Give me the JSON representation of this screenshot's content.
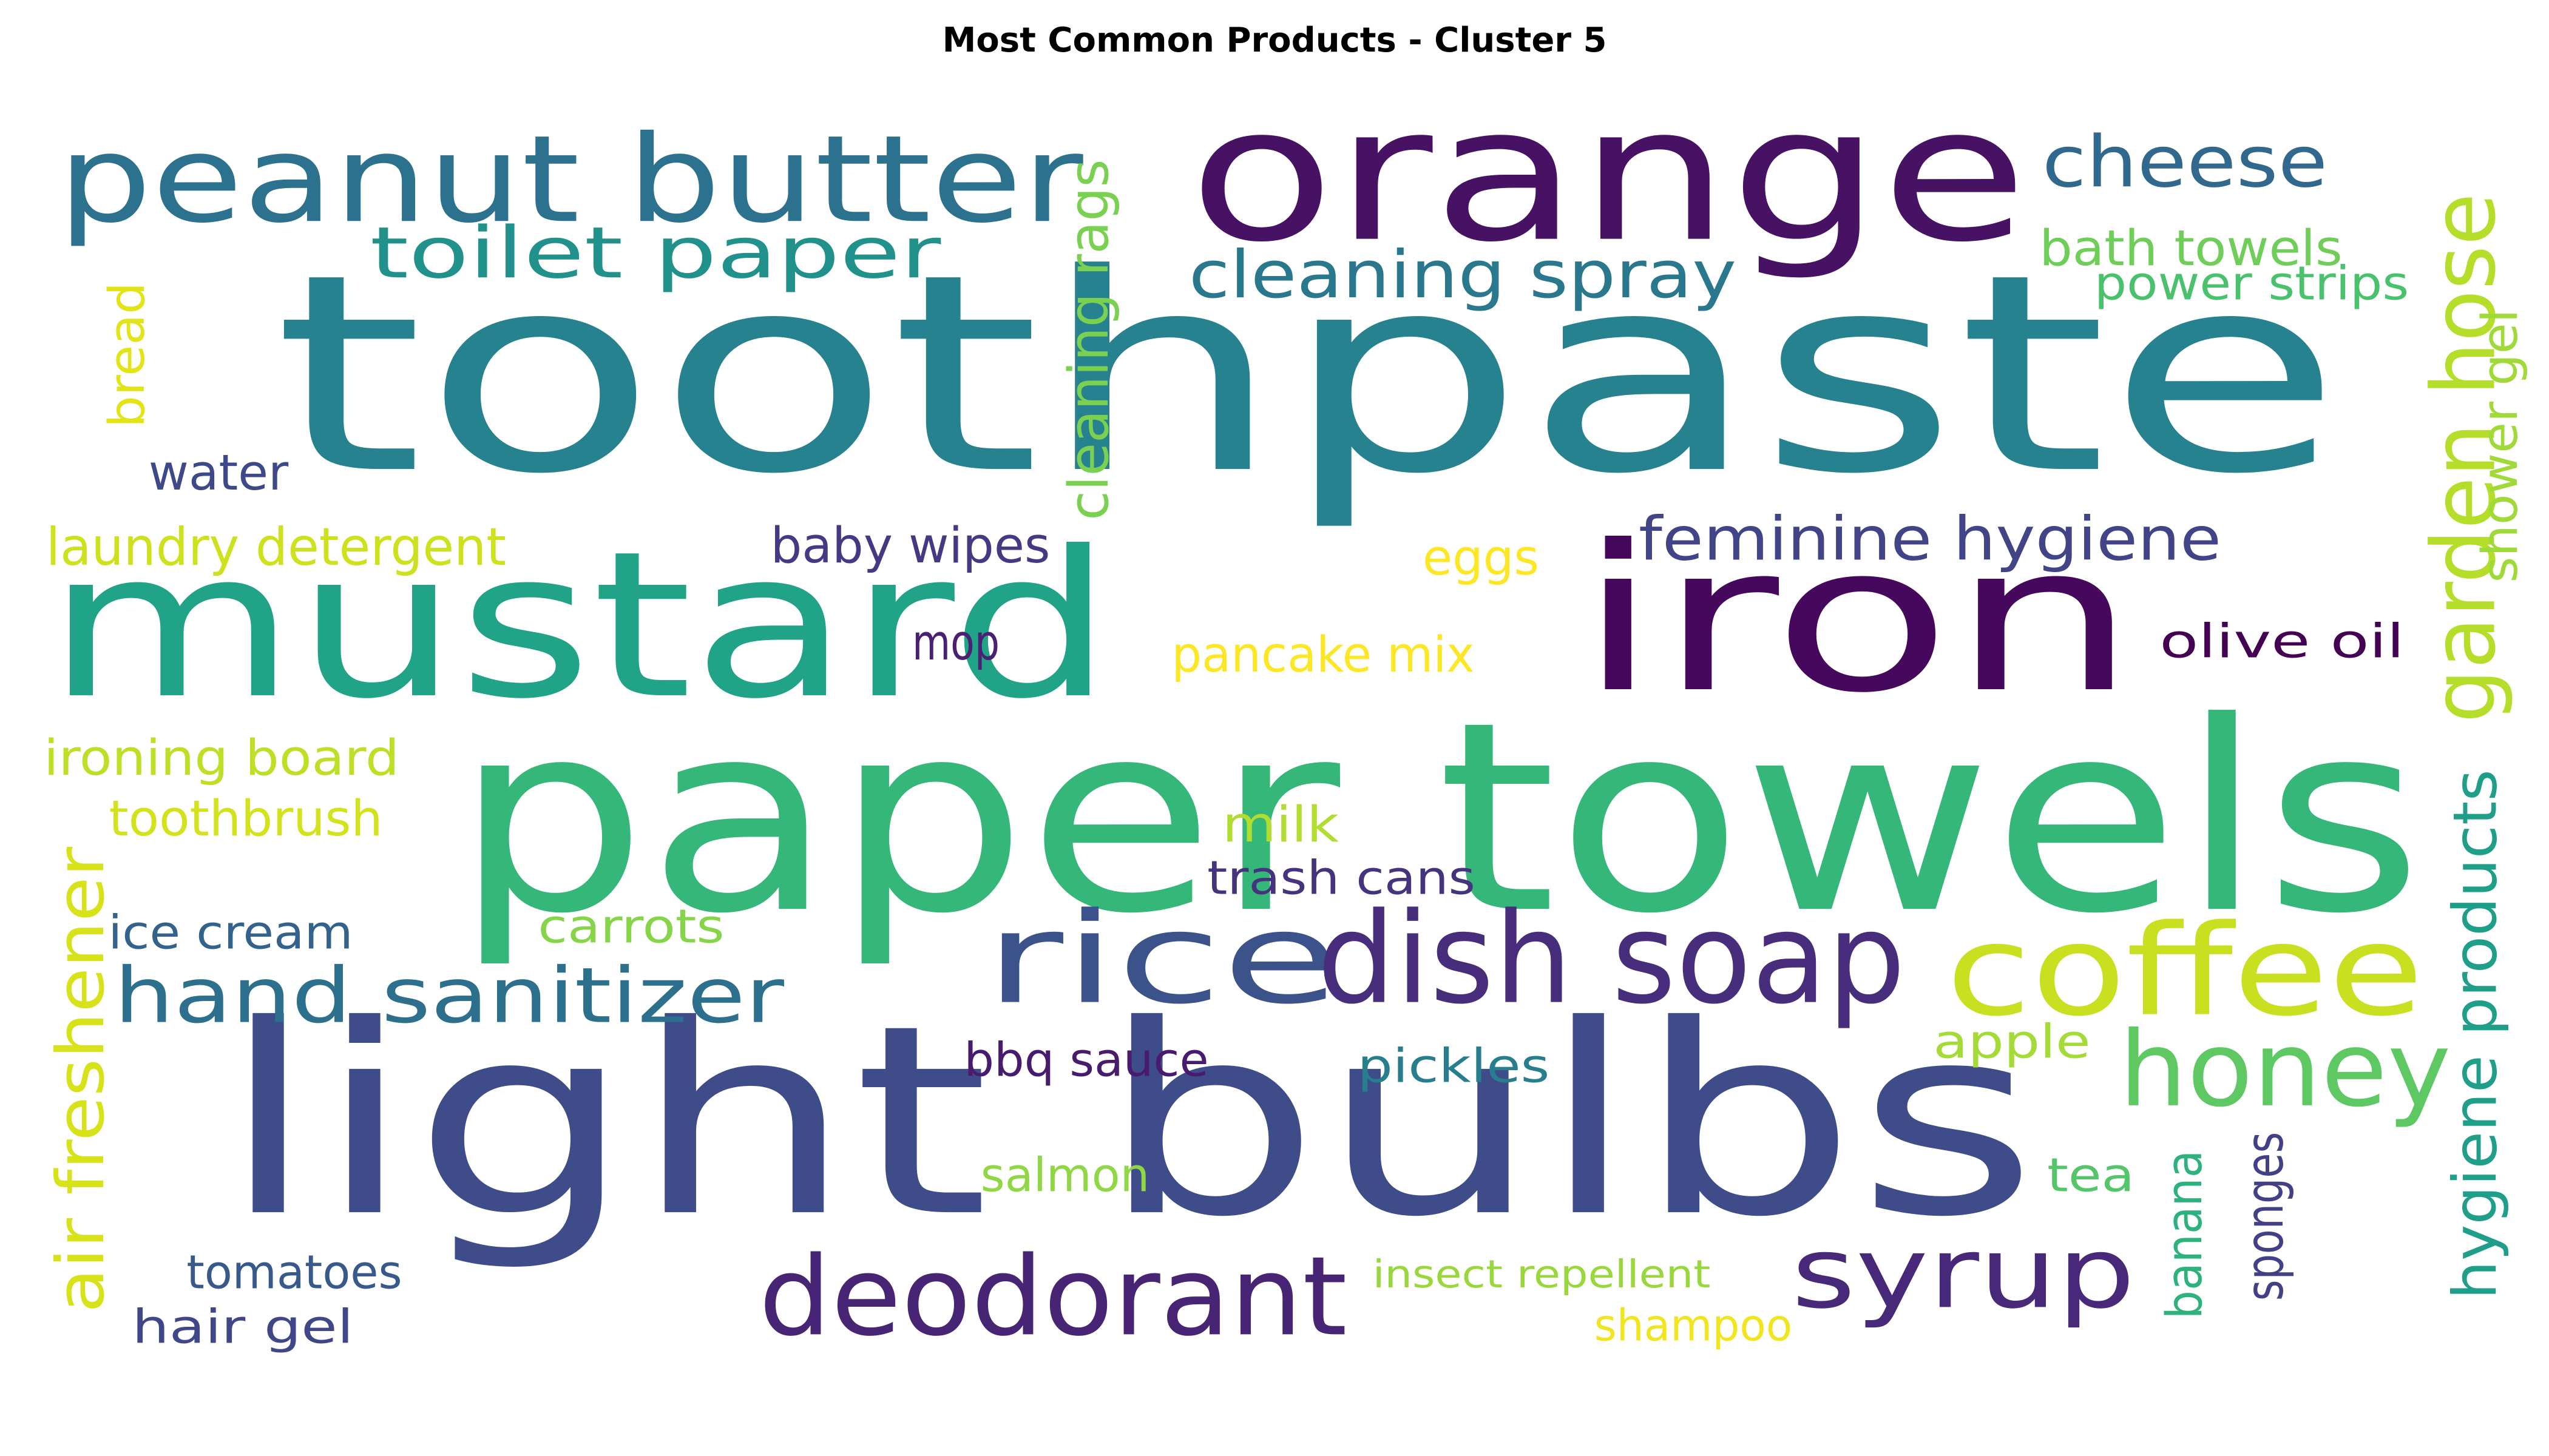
{
  "title": "Most Common Products - Cluster 5",
  "words": [
    {
      "text": "toothpaste",
      "color": "#26828e"
    },
    {
      "text": "orange",
      "color": "#471164"
    },
    {
      "text": "mustard",
      "color": "#20a386"
    },
    {
      "text": "paper towels",
      "color": "#35b779"
    },
    {
      "text": "light bulbs",
      "color": "#3e4c8a"
    },
    {
      "text": "iron",
      "color": "#46085c"
    },
    {
      "text": "peanut butter",
      "color": "#2c728e"
    },
    {
      "text": "rice",
      "color": "#3b528b"
    },
    {
      "text": "dish soap",
      "color": "#472d7b"
    },
    {
      "text": "coffee",
      "color": "#c8e020"
    },
    {
      "text": "deodorant",
      "color": "#482475"
    },
    {
      "text": "honey",
      "color": "#5ec962"
    },
    {
      "text": "syrup",
      "color": "#482878"
    },
    {
      "text": "hand sanitizer",
      "color": "#2d708e"
    },
    {
      "text": "cheese",
      "color": "#31688e"
    },
    {
      "text": "toilet paper",
      "color": "#21918c"
    },
    {
      "text": "cleaning spray",
      "color": "#2a788e"
    },
    {
      "text": "garden hose",
      "color": "#b5de2b"
    },
    {
      "text": "air freshener",
      "color": "#d8e219"
    },
    {
      "text": "feminine hygiene",
      "color": "#414487"
    },
    {
      "text": "hygiene products",
      "color": "#1f9e89"
    },
    {
      "text": "bath towels",
      "color": "#6ece58"
    },
    {
      "text": "power strips",
      "color": "#4ac16d"
    },
    {
      "text": "shower gel",
      "color": "#a0da39"
    },
    {
      "text": "cleaning rags",
      "color": "#7ad151"
    },
    {
      "text": "bread",
      "color": "#e2e418"
    },
    {
      "text": "water",
      "color": "#3e4989"
    },
    {
      "text": "laundry detergent",
      "color": "#cde11d"
    },
    {
      "text": "baby wipes",
      "color": "#443983"
    },
    {
      "text": "eggs",
      "color": "#fde725"
    },
    {
      "text": "mop",
      "color": "#482173"
    },
    {
      "text": "pancake mix",
      "color": "#fde725"
    },
    {
      "text": "olive oil",
      "color": "#440154"
    },
    {
      "text": "ironing board",
      "color": "#bddf26"
    },
    {
      "text": "toothbrush",
      "color": "#d2e21b"
    },
    {
      "text": "milk",
      "color": "#b0dd2f"
    },
    {
      "text": "trash cans",
      "color": "#46337e"
    },
    {
      "text": "ice cream",
      "color": "#33638d"
    },
    {
      "text": "carrots",
      "color": "#86d549"
    },
    {
      "text": "bbq sauce",
      "color": "#481b6d"
    },
    {
      "text": "pickles",
      "color": "#277f8e"
    },
    {
      "text": "apple",
      "color": "#a5db36"
    },
    {
      "text": "salmon",
      "color": "#8fd744"
    },
    {
      "text": "tea",
      "color": "#54c568"
    },
    {
      "text": "banana",
      "color": "#2db27d"
    },
    {
      "text": "sponges",
      "color": "#424086"
    },
    {
      "text": "tomatoes",
      "color": "#38598c"
    },
    {
      "text": "insect repellent",
      "color": "#99d83d"
    },
    {
      "text": "hair gel",
      "color": "#3f4788"
    },
    {
      "text": "shampoo",
      "color": "#f1e51d"
    }
  ]
}
